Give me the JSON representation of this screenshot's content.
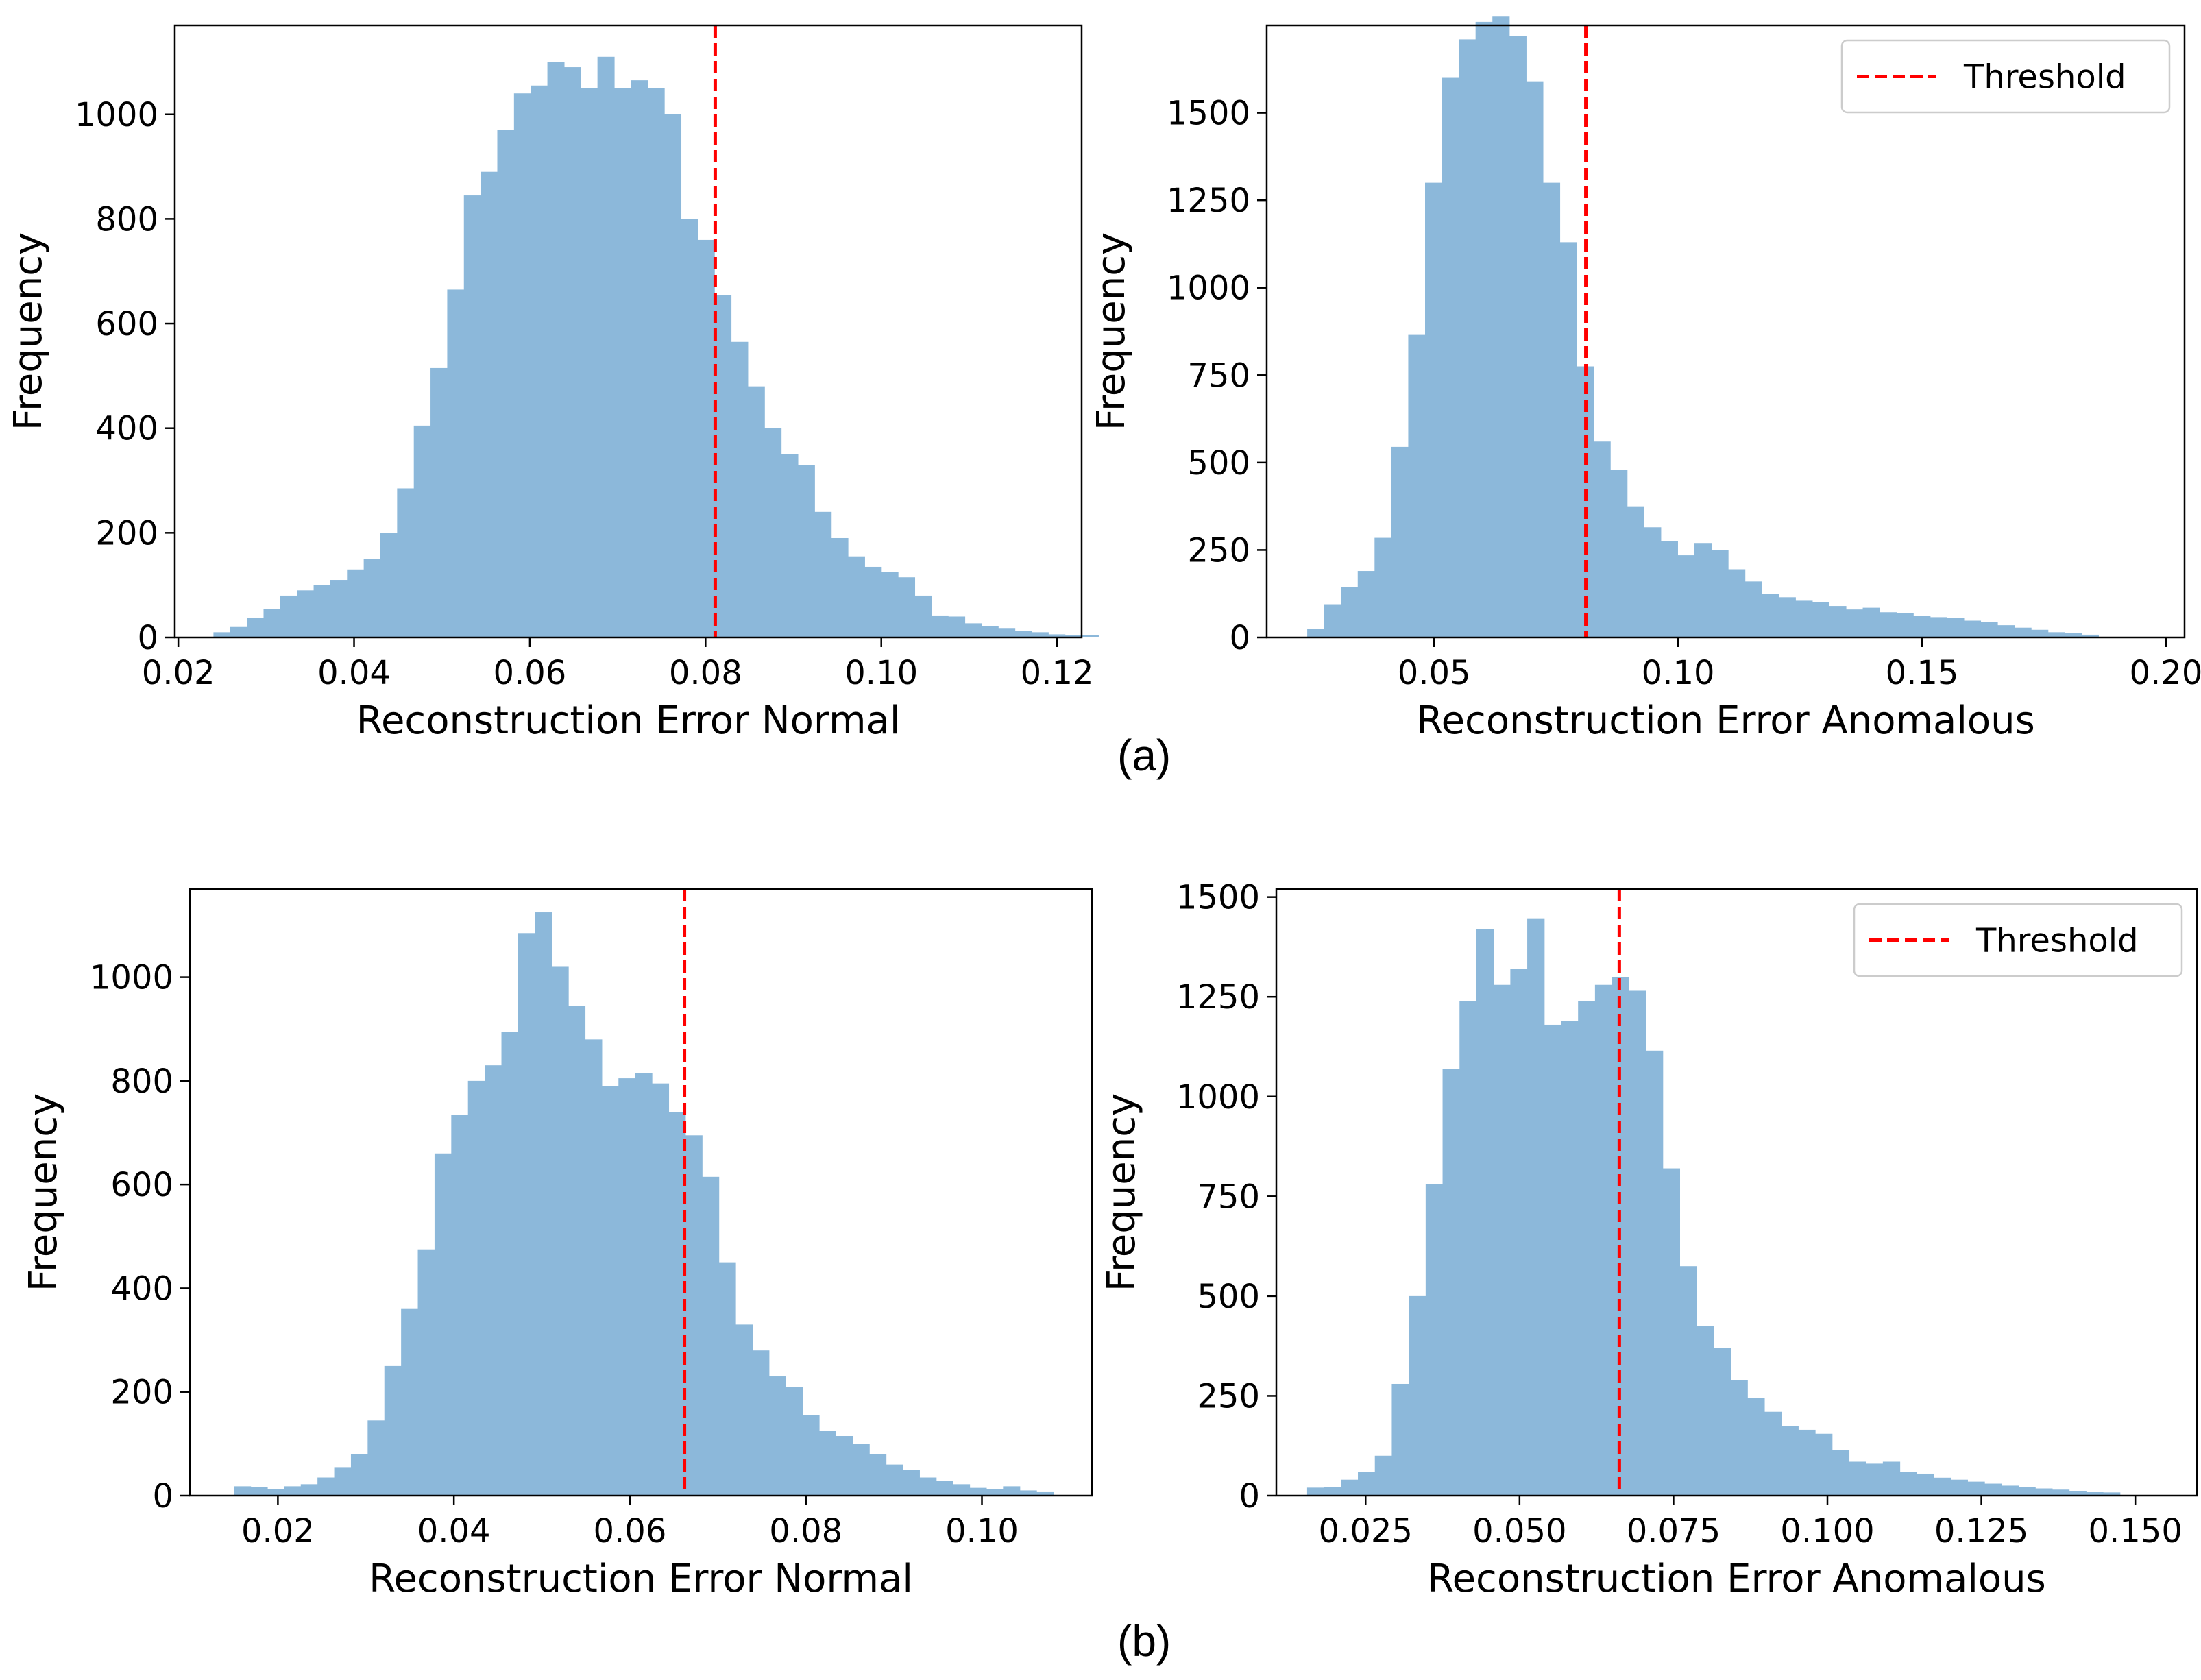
{
  "panels": {
    "a": {
      "label": "(a)"
    },
    "b": {
      "label": "(b)"
    }
  },
  "colors": {
    "bar": "#8cb8da",
    "threshold": "#ff0000",
    "axis": "#000000"
  },
  "chart_data": [
    {
      "id": "a-normal",
      "type": "bar",
      "xlabel": "Reconstruction Error Normal",
      "ylabel": "Frequency",
      "xlim": [
        0.0196,
        0.1228
      ],
      "ylim": [
        0,
        1170
      ],
      "xticks": [
        0.02,
        0.04,
        0.06,
        0.08,
        0.1,
        0.12
      ],
      "xtick_labels": [
        "0.02",
        "0.04",
        "0.06",
        "0.08",
        "0.10",
        "0.12"
      ],
      "yticks": [
        0,
        200,
        400,
        600,
        800,
        1000
      ],
      "ytick_labels": [
        "0",
        "200",
        "400",
        "600",
        "800",
        "1000"
      ],
      "bin_start": 0.024,
      "bin_width": 0.0019,
      "values": [
        10,
        20,
        38,
        55,
        80,
        90,
        100,
        110,
        130,
        150,
        200,
        285,
        405,
        515,
        665,
        845,
        890,
        970,
        1040,
        1055,
        1100,
        1090,
        1050,
        1110,
        1050,
        1065,
        1050,
        1000,
        800,
        760,
        655,
        565,
        480,
        400,
        350,
        330,
        240,
        190,
        155,
        135,
        125,
        115,
        80,
        42,
        40,
        27,
        22,
        18,
        12,
        10,
        6,
        5,
        4
      ],
      "threshold": 0.0811,
      "legend": null
    },
    {
      "id": "a-anomalous",
      "type": "bar",
      "xlabel": "Reconstruction Error Anomalous",
      "ylabel": "Frequency",
      "xlim": [
        0.0157,
        0.2038
      ],
      "ylim": [
        0,
        1750
      ],
      "xticks": [
        0.05,
        0.1,
        0.15,
        0.2
      ],
      "xtick_labels": [
        "0.05",
        "0.10",
        "0.15",
        "0.20"
      ],
      "yticks": [
        0,
        250,
        500,
        750,
        1000,
        1250,
        1500
      ],
      "ytick_labels": [
        "0",
        "250",
        "500",
        "750",
        "1000",
        "1250",
        "1500"
      ],
      "bin_start": 0.024,
      "bin_width": 0.00345,
      "values": [
        25,
        95,
        145,
        190,
        285,
        545,
        865,
        1300,
        1600,
        1710,
        1760,
        1775,
        1720,
        1590,
        1300,
        1130,
        775,
        560,
        480,
        375,
        315,
        275,
        235,
        270,
        250,
        195,
        160,
        125,
        115,
        105,
        100,
        90,
        80,
        85,
        72,
        70,
        62,
        58,
        55,
        48,
        45,
        35,
        28,
        22,
        15,
        12,
        8
      ],
      "threshold": 0.0811,
      "legend": {
        "label": "Threshold",
        "position": "top-right"
      }
    },
    {
      "id": "b-normal",
      "type": "bar",
      "xlabel": "Reconstruction Error Normal",
      "ylabel": "Frequency",
      "xlim": [
        0.01,
        0.1125
      ],
      "ylim": [
        0,
        1170
      ],
      "xticks": [
        0.02,
        0.04,
        0.06,
        0.08,
        0.1
      ],
      "xtick_labels": [
        "0.02",
        "0.04",
        "0.06",
        "0.08",
        "0.10"
      ],
      "yticks": [
        0,
        200,
        400,
        600,
        800,
        1000
      ],
      "ytick_labels": [
        "0",
        "200",
        "400",
        "600",
        "800",
        "1000"
      ],
      "bin_start": 0.015,
      "bin_width": 0.0019,
      "values": [
        18,
        16,
        12,
        18,
        22,
        35,
        55,
        80,
        145,
        250,
        360,
        475,
        660,
        735,
        800,
        830,
        895,
        1085,
        1125,
        1020,
        945,
        880,
        790,
        805,
        815,
        795,
        740,
        695,
        615,
        450,
        330,
        280,
        230,
        210,
        155,
        125,
        115,
        100,
        80,
        60,
        50,
        35,
        28,
        22,
        15,
        12,
        18,
        10,
        8
      ],
      "threshold": 0.0662,
      "legend": null
    },
    {
      "id": "b-anomalous",
      "type": "bar",
      "xlabel": "Reconstruction Error Anomalous",
      "ylabel": "Frequency",
      "xlim": [
        0.0105,
        0.16
      ],
      "ylim": [
        0,
        1520
      ],
      "xticks": [
        0.025,
        0.05,
        0.075,
        0.1,
        0.125,
        0.15
      ],
      "xtick_labels": [
        "0.025",
        "0.050",
        "0.075",
        "0.100",
        "0.125",
        "0.150"
      ],
      "yticks": [
        0,
        250,
        500,
        750,
        1000,
        1250,
        1500
      ],
      "ytick_labels": [
        "0",
        "250",
        "500",
        "750",
        "1000",
        "1250",
        "1500"
      ],
      "bin_start": 0.0155,
      "bin_width": 0.00275,
      "values": [
        20,
        22,
        40,
        60,
        100,
        280,
        500,
        780,
        1070,
        1240,
        1420,
        1280,
        1320,
        1445,
        1180,
        1190,
        1240,
        1280,
        1300,
        1265,
        1115,
        820,
        575,
        425,
        370,
        290,
        245,
        210,
        175,
        165,
        155,
        115,
        85,
        80,
        85,
        60,
        55,
        45,
        40,
        35,
        30,
        25,
        22,
        18,
        15,
        12,
        10,
        8
      ],
      "threshold": 0.0662,
      "legend": {
        "label": "Threshold",
        "position": "top-right"
      }
    }
  ]
}
